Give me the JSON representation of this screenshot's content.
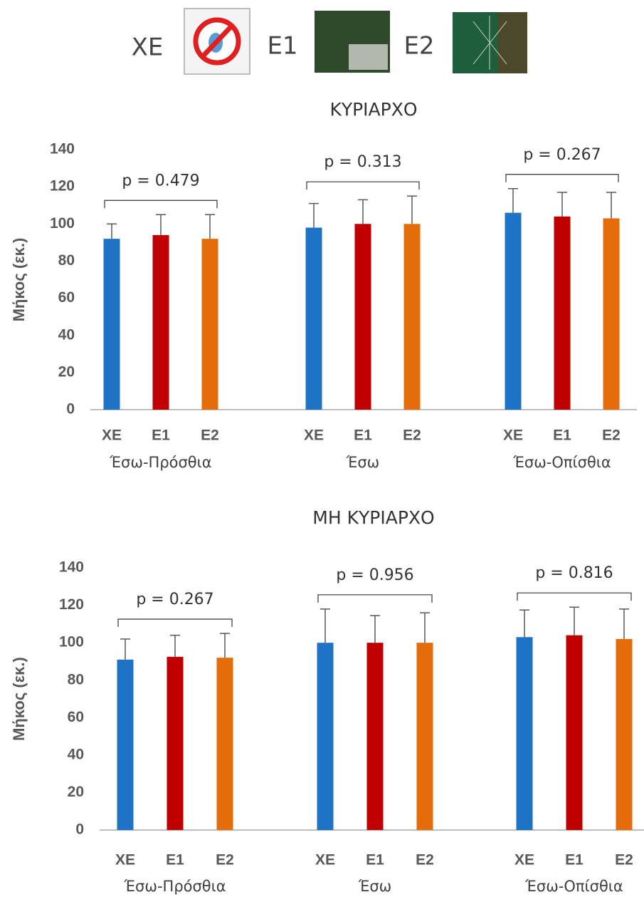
{
  "legend": {
    "items": [
      "ΧΕ",
      "Ε1",
      "Ε2"
    ]
  },
  "chart_data": [
    {
      "type": "bar",
      "title": "ΚΥΡΙΑΡΧΟ",
      "y_label": "Μήκος (εκ.)",
      "categories": [
        "Έσω-Πρόσθια",
        "Έσω",
        "Έσω-Οπίσθια"
      ],
      "annotations": [
        "p = 0.479",
        "p = 0.313",
        "p = 0.267"
      ],
      "ylim": [
        0,
        140
      ],
      "yticks": [
        0,
        20,
        40,
        60,
        80,
        100,
        120,
        140
      ],
      "grid": false,
      "series": [
        {
          "name": "ΧΕ",
          "color": "#1f73c4",
          "values": [
            92,
            98,
            106
          ],
          "errors": [
            8,
            13,
            13
          ]
        },
        {
          "name": "Ε1",
          "color": "#c00000",
          "values": [
            94,
            100,
            104
          ],
          "errors": [
            11,
            13,
            13
          ]
        },
        {
          "name": "Ε2",
          "color": "#e46c0a",
          "values": [
            92,
            100,
            103
          ],
          "errors": [
            13,
            15,
            14
          ]
        }
      ]
    },
    {
      "type": "bar",
      "title": "ΜΗ ΚΥΡΙΑΡΧΟ",
      "y_label": "Μήκος (εκ.)",
      "categories": [
        "Έσω-Πρόσθια",
        "Έσω",
        "Έσω-Οπίσθια"
      ],
      "annotations": [
        "p = 0.267",
        "p = 0.956",
        "p = 0.816"
      ],
      "ylim": [
        0,
        140
      ],
      "yticks": [
        0,
        20,
        40,
        60,
        80,
        100,
        120,
        140
      ],
      "grid": false,
      "series": [
        {
          "name": "ΧΕ",
          "color": "#1f73c4",
          "values": [
            91,
            100,
            103
          ],
          "errors": [
            11,
            18,
            14.5
          ]
        },
        {
          "name": "Ε1",
          "color": "#c00000",
          "values": [
            92.5,
            100,
            104
          ],
          "errors": [
            11.5,
            14.5,
            15
          ]
        },
        {
          "name": "Ε2",
          "color": "#e46c0a",
          "values": [
            92,
            100,
            102
          ],
          "errors": [
            13,
            16,
            16
          ]
        }
      ]
    }
  ]
}
